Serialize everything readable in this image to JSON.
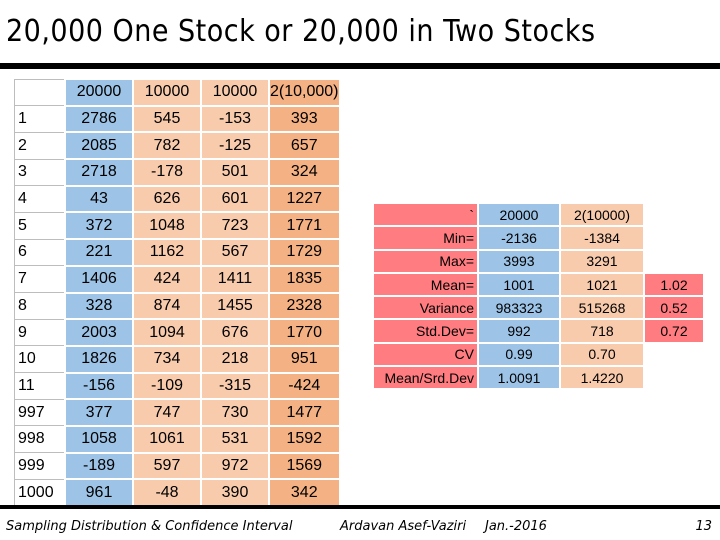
{
  "title": "20,000 One Stock or 20,000 in Two Stocks",
  "left_table": {
    "headers": [
      "",
      "20000",
      "10000",
      "10000",
      "2(10,000)"
    ],
    "rows": [
      [
        "1",
        "2786",
        "545",
        "-153",
        "393"
      ],
      [
        "2",
        "2085",
        "782",
        "-125",
        "657"
      ],
      [
        "3",
        "2718",
        "-178",
        "501",
        "324"
      ],
      [
        "4",
        "43",
        "626",
        "601",
        "1227"
      ],
      [
        "5",
        "372",
        "1048",
        "723",
        "1771"
      ],
      [
        "6",
        "221",
        "1162",
        "567",
        "1729"
      ],
      [
        "7",
        "1406",
        "424",
        "1411",
        "1835"
      ],
      [
        "8",
        "328",
        "874",
        "1455",
        "2328"
      ],
      [
        "9",
        "2003",
        "1094",
        "676",
        "1770"
      ],
      [
        "10",
        "1826",
        "734",
        "218",
        "951"
      ],
      [
        "11",
        "-156",
        "-109",
        "-315",
        "-424"
      ],
      [
        "997",
        "377",
        "747",
        "730",
        "1477"
      ],
      [
        "998",
        "1058",
        "1061",
        "531",
        "1592"
      ],
      [
        "999",
        "-189",
        "597",
        "972",
        "1569"
      ],
      [
        "1000",
        "961",
        "-48",
        "390",
        "342"
      ]
    ]
  },
  "right_table": {
    "headers": [
      "`",
      "20000",
      "2(10000)"
    ],
    "rows": [
      [
        "Min=",
        "-2136",
        "-1384",
        ""
      ],
      [
        "Max=",
        "3993",
        "3291",
        ""
      ],
      [
        "Mean=",
        "1001",
        "1021",
        "1.02"
      ],
      [
        "Variance",
        "983323",
        "515268",
        "0.52"
      ],
      [
        "Std.Dev=",
        "992",
        "718",
        "0.72"
      ],
      [
        "CV",
        "0.99",
        "0.70",
        ""
      ],
      [
        "Mean/Srd.Dev",
        "1.0091",
        "1.4220",
        ""
      ]
    ]
  },
  "footer": {
    "left": "Sampling Distribution & Confidence Interval",
    "author": "Ardavan Asef-Vaziri",
    "date": "Jan.-2016",
    "page": "13"
  }
}
